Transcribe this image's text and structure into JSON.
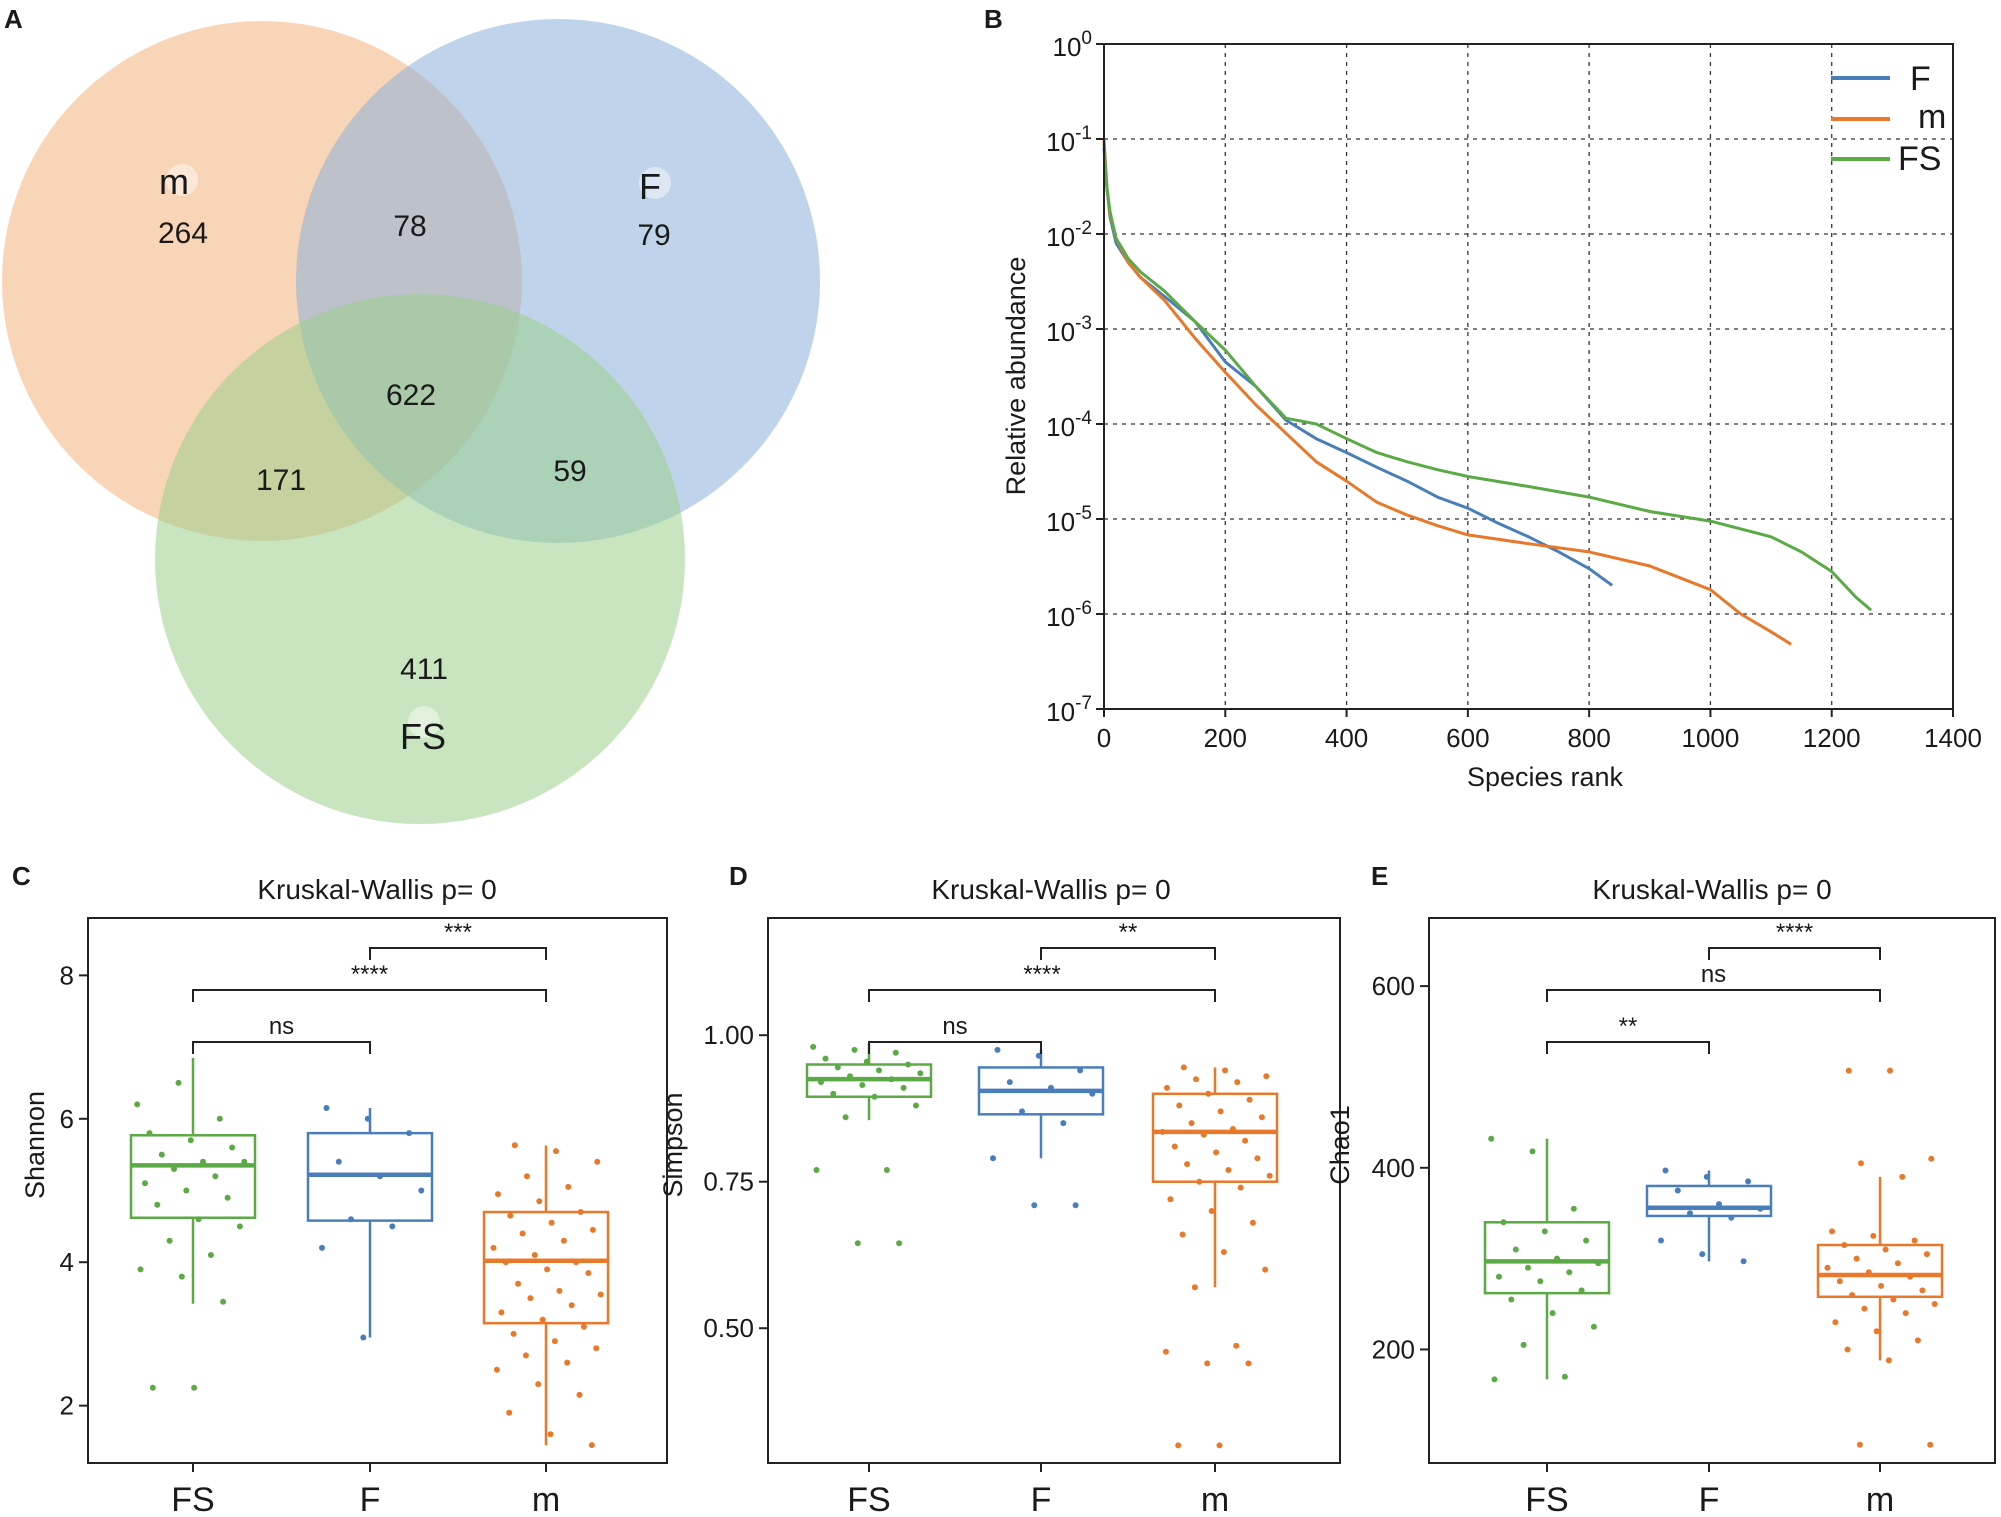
{
  "chart_data": [
    {
      "panel": "A",
      "type": "venn",
      "sets": [
        {
          "name": "m",
          "color": "#F4B27D",
          "only": 264
        },
        {
          "name": "F",
          "color": "#8BB0D8",
          "only": 79
        },
        {
          "name": "FS",
          "color": "#9BCF8C",
          "only": 411
        }
      ],
      "intersections": [
        {
          "sets": [
            "m",
            "F"
          ],
          "value": 78
        },
        {
          "sets": [
            "m",
            "F",
            "FS"
          ],
          "value": 622
        },
        {
          "sets": [
            "m",
            "FS"
          ],
          "value": 171
        },
        {
          "sets": [
            "F",
            "FS"
          ],
          "value": 59
        }
      ]
    },
    {
      "panel": "B",
      "type": "line",
      "xlabel": "Species rank",
      "ylabel": "Relative abundance",
      "xlim": [
        0,
        1400
      ],
      "xticks": [
        "0",
        "200",
        "400",
        "600",
        "800",
        "1000",
        "1200",
        "1400"
      ],
      "yscale": "log",
      "yticks": [
        {
          "base": "10",
          "exp": "0"
        },
        {
          "base": "10",
          "exp": "-1"
        },
        {
          "base": "10",
          "exp": "-2"
        },
        {
          "base": "10",
          "exp": "-3"
        },
        {
          "base": "10",
          "exp": "-4"
        },
        {
          "base": "10",
          "exp": "-5"
        },
        {
          "base": "10",
          "exp": "-6"
        },
        {
          "base": "10",
          "exp": "-7"
        }
      ],
      "grid": true,
      "legend_position": "top-right",
      "series": [
        {
          "name": "F",
          "color": "#4A7EBB",
          "points": [
            [
              0,
              0.08
            ],
            [
              5,
              0.03
            ],
            [
              10,
              0.015
            ],
            [
              20,
              0.008
            ],
            [
              40,
              0.005
            ],
            [
              60,
              0.0035
            ],
            [
              100,
              0.0022
            ],
            [
              150,
              0.0012
            ],
            [
              200,
              0.00045
            ],
            [
              250,
              0.00025
            ],
            [
              300,
              0.00011
            ],
            [
              350,
              7e-05
            ],
            [
              400,
              5e-05
            ],
            [
              450,
              3.5e-05
            ],
            [
              500,
              2.5e-05
            ],
            [
              550,
              1.7e-05
            ],
            [
              600,
              1.3e-05
            ],
            [
              650,
              9e-06
            ],
            [
              700,
              6.5e-06
            ],
            [
              750,
              4.5e-06
            ],
            [
              800,
              3e-06
            ],
            [
              838,
              2e-06
            ]
          ]
        },
        {
          "name": "m",
          "color": "#E8782A",
          "points": [
            [
              0,
              0.1
            ],
            [
              5,
              0.03
            ],
            [
              10,
              0.016
            ],
            [
              20,
              0.009
            ],
            [
              40,
              0.005
            ],
            [
              60,
              0.0035
            ],
            [
              100,
              0.002
            ],
            [
              150,
              0.0008
            ],
            [
              200,
              0.00035
            ],
            [
              250,
              0.00016
            ],
            [
              300,
              8e-05
            ],
            [
              350,
              4e-05
            ],
            [
              400,
              2.5e-05
            ],
            [
              450,
              1.5e-05
            ],
            [
              500,
              1.1e-05
            ],
            [
              550,
              8.5e-06
            ],
            [
              600,
              6.8e-06
            ],
            [
              700,
              5.5e-06
            ],
            [
              800,
              4.5e-06
            ],
            [
              900,
              3.2e-06
            ],
            [
              1000,
              1.8e-06
            ],
            [
              1050,
              1e-06
            ],
            [
              1100,
              6.5e-07
            ],
            [
              1133,
              4.8e-07
            ]
          ]
        },
        {
          "name": "FS",
          "color": "#5BAA46",
          "points": [
            [
              0,
              0.09
            ],
            [
              5,
              0.03
            ],
            [
              10,
              0.017
            ],
            [
              20,
              0.009
            ],
            [
              40,
              0.0055
            ],
            [
              60,
              0.004
            ],
            [
              100,
              0.0025
            ],
            [
              150,
              0.0012
            ],
            [
              200,
              0.0006
            ],
            [
              250,
              0.00025
            ],
            [
              300,
              0.000115
            ],
            [
              350,
              0.0001
            ],
            [
              400,
              7e-05
            ],
            [
              450,
              5e-05
            ],
            [
              500,
              4e-05
            ],
            [
              550,
              3.3e-05
            ],
            [
              600,
              2.8e-05
            ],
            [
              700,
              2.2e-05
            ],
            [
              800,
              1.7e-05
            ],
            [
              900,
              1.2e-05
            ],
            [
              1000,
              9.5e-06
            ],
            [
              1100,
              6.5e-06
            ],
            [
              1150,
              4.5e-06
            ],
            [
              1200,
              2.8e-06
            ],
            [
              1240,
              1.5e-06
            ],
            [
              1265,
              1.1e-06
            ]
          ]
        }
      ]
    },
    {
      "panel": "C",
      "type": "box",
      "title": "Kruskal-Wallis p= 0",
      "ylabel": "Shannon",
      "ylim": [
        1.2,
        8.8
      ],
      "yticks": [
        "2",
        "4",
        "6",
        "8"
      ],
      "categories": [
        "FS",
        "F",
        "m"
      ],
      "colors": [
        "#5BAA46",
        "#4A7EBB",
        "#E8782A"
      ],
      "boxes": [
        {
          "q1": 4.62,
          "median": 5.35,
          "q3": 5.77,
          "lower": 3.42,
          "upper": 6.85,
          "points": [
            6.2,
            6.5,
            6.0,
            5.8,
            5.7,
            5.6,
            5.5,
            5.4,
            5.4,
            5.3,
            5.2,
            5.1,
            5.0,
            4.9,
            4.8,
            4.6,
            4.5,
            4.3,
            4.1,
            3.9,
            3.8,
            3.45,
            2.25,
            2.25
          ]
        },
        {
          "q1": 4.58,
          "median": 5.22,
          "q3": 5.8,
          "lower": 2.95,
          "upper": 6.15,
          "points": [
            6.15,
            6.0,
            5.8,
            5.4,
            5.2,
            5.0,
            4.6,
            4.5,
            4.2,
            2.95
          ]
        },
        {
          "q1": 3.15,
          "median": 4.02,
          "q3": 4.7,
          "lower": 1.45,
          "upper": 5.63,
          "points": [
            5.63,
            5.55,
            5.4,
            5.2,
            5.05,
            4.95,
            4.85,
            4.7,
            4.65,
            4.55,
            4.45,
            4.4,
            4.3,
            4.2,
            4.1,
            4.0,
            4.0,
            3.9,
            3.85,
            3.7,
            3.6,
            3.55,
            3.5,
            3.4,
            3.3,
            3.2,
            3.1,
            3.0,
            2.9,
            2.8,
            2.7,
            2.6,
            2.5,
            2.3,
            2.15,
            1.9,
            1.6,
            1.45
          ]
        }
      ],
      "comparisons": [
        {
          "from": "F",
          "to": "m",
          "label": "***"
        },
        {
          "from": "FS",
          "to": "m",
          "label": "****"
        },
        {
          "from": "FS",
          "to": "F",
          "label": "ns"
        }
      ]
    },
    {
      "panel": "D",
      "type": "box",
      "title": "Kruskal-Wallis p= 0",
      "ylabel": "Simpson",
      "ylim": [
        0.27,
        1.2
      ],
      "yticks": [
        "0.50",
        "0.75",
        "1.00"
      ],
      "categories": [
        "FS",
        "F",
        "m"
      ],
      "colors": [
        "#5BAA46",
        "#4A7EBB",
        "#E8782A"
      ],
      "boxes": [
        {
          "q1": 0.895,
          "median": 0.925,
          "q3": 0.95,
          "lower": 0.855,
          "upper": 0.985,
          "points": [
            0.98,
            0.975,
            0.97,
            0.96,
            0.955,
            0.95,
            0.945,
            0.94,
            0.935,
            0.93,
            0.925,
            0.92,
            0.915,
            0.91,
            0.9,
            0.895,
            0.88,
            0.86,
            0.77,
            0.77,
            0.645,
            0.645
          ]
        },
        {
          "q1": 0.865,
          "median": 0.905,
          "q3": 0.945,
          "lower": 0.79,
          "upper": 0.975,
          "points": [
            0.975,
            0.965,
            0.94,
            0.92,
            0.91,
            0.9,
            0.87,
            0.85,
            0.79,
            0.71,
            0.71
          ]
        },
        {
          "q1": 0.75,
          "median": 0.835,
          "q3": 0.9,
          "lower": 0.57,
          "upper": 0.945,
          "points": [
            0.945,
            0.94,
            0.93,
            0.925,
            0.92,
            0.91,
            0.9,
            0.89,
            0.88,
            0.87,
            0.86,
            0.85,
            0.84,
            0.835,
            0.83,
            0.82,
            0.81,
            0.8,
            0.79,
            0.78,
            0.77,
            0.76,
            0.75,
            0.74,
            0.72,
            0.7,
            0.68,
            0.66,
            0.63,
            0.6,
            0.57,
            0.47,
            0.46,
            0.44,
            0.44,
            0.3,
            0.3
          ]
        }
      ],
      "comparisons": [
        {
          "from": "F",
          "to": "m",
          "label": "**"
        },
        {
          "from": "FS",
          "to": "m",
          "label": "****"
        },
        {
          "from": "FS",
          "to": "F",
          "label": "ns"
        }
      ]
    },
    {
      "panel": "E",
      "type": "box",
      "title": "Kruskal-Wallis p= 0",
      "ylabel": "Chao1",
      "ylim": [
        75,
        675
      ],
      "yticks": [
        "200",
        "400",
        "600"
      ],
      "categories": [
        "FS",
        "F",
        "m"
      ],
      "colors": [
        "#5BAA46",
        "#4A7EBB",
        "#E8782A"
      ],
      "boxes": [
        {
          "q1": 262,
          "median": 297,
          "q3": 340,
          "lower": 167,
          "upper": 432,
          "points": [
            432,
            418,
            355,
            340,
            330,
            320,
            310,
            300,
            295,
            290,
            285,
            280,
            275,
            265,
            255,
            240,
            225,
            205,
            170,
            167
          ]
        },
        {
          "q1": 347,
          "median": 356,
          "q3": 380,
          "lower": 297,
          "upper": 397,
          "points": [
            397,
            390,
            385,
            375,
            360,
            355,
            350,
            345,
            320,
            305,
            297
          ]
        },
        {
          "q1": 258,
          "median": 282,
          "q3": 315,
          "lower": 188,
          "upper": 390,
          "points": [
            507,
            507,
            410,
            405,
            390,
            330,
            325,
            320,
            315,
            310,
            305,
            300,
            295,
            290,
            285,
            280,
            275,
            270,
            265,
            260,
            255,
            250,
            245,
            240,
            230,
            220,
            210,
            200,
            188,
            95,
            95
          ]
        }
      ],
      "comparisons": [
        {
          "from": "F",
          "to": "m",
          "label": "****"
        },
        {
          "from": "FS",
          "to": "m",
          "label": "ns"
        },
        {
          "from": "FS",
          "to": "F",
          "label": "**"
        }
      ]
    }
  ]
}
